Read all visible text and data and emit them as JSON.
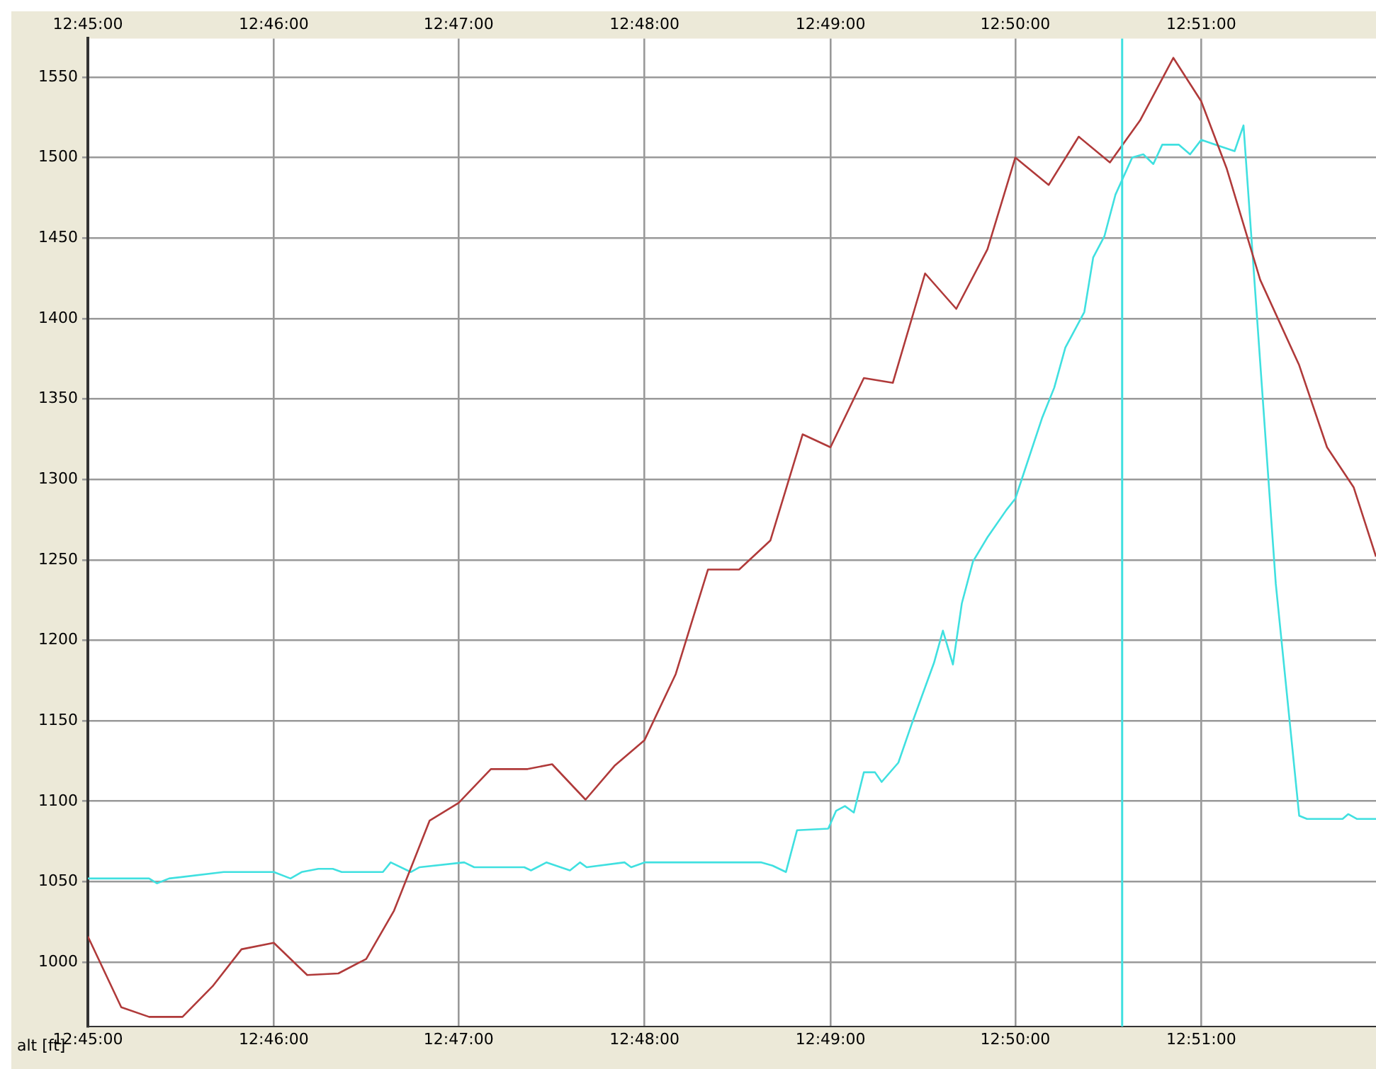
{
  "chart_data": {
    "type": "line",
    "ylabel": "alt [ft]",
    "xlim": [
      12.75,
      12.8657
    ],
    "xticks": [
      {
        "value": 12.75,
        "label": "12:45:00"
      },
      {
        "value": 12.7667,
        "label": "12:46:00"
      },
      {
        "value": 12.7833,
        "label": "12:47:00"
      },
      {
        "value": 12.8,
        "label": "12:48:00"
      },
      {
        "value": 12.8167,
        "label": "12:49:00"
      },
      {
        "value": 12.8333,
        "label": "12:50:00"
      },
      {
        "value": 12.85,
        "label": "12:51:00"
      }
    ],
    "x2lim": [
      12.75,
      12.8657
    ],
    "x2ticks": [
      {
        "value": 12.75,
        "label": "12:45:00"
      },
      {
        "value": 12.7667,
        "label": "12:46:00"
      },
      {
        "value": 12.7833,
        "label": "12:47:00"
      },
      {
        "value": 12.8,
        "label": "12:48:00"
      },
      {
        "value": 12.8167,
        "label": "12:49:00"
      },
      {
        "value": 12.8333,
        "label": "12:50:00"
      },
      {
        "value": 12.85,
        "label": "12:51:00"
      }
    ],
    "ylim": [
      960,
      1574
    ],
    "yticks": [
      1000,
      1050,
      1100,
      1150,
      1200,
      1250,
      1300,
      1350,
      1400,
      1450,
      1500,
      1550
    ],
    "grid": true,
    "legend": false,
    "marker": "none",
    "line_style": "solid",
    "ref_lines": [
      {
        "axis": "x",
        "value": 12.8429,
        "color": "#40e0e0"
      }
    ],
    "series": [
      {
        "color": "#b03a3a",
        "x": [
          12.75,
          12.753,
          12.7555,
          12.7585,
          12.7612,
          12.7638,
          12.7667,
          12.7697,
          12.7725,
          12.775,
          12.7775,
          12.7807,
          12.7833,
          12.7862,
          12.7895,
          12.7917,
          12.7947,
          12.7973,
          12.8,
          12.8028,
          12.8057,
          12.8085,
          12.8113,
          12.8142,
          12.8167,
          12.8197,
          12.8223,
          12.8252,
          12.828,
          12.8308,
          12.8333,
          12.8363,
          12.839,
          12.8418,
          12.8445,
          12.8475,
          12.85,
          12.8523,
          12.8553,
          12.8588,
          12.8613,
          12.8637,
          12.8657
        ],
        "values": [
          1016,
          972,
          966,
          966,
          985,
          1008,
          1012,
          992,
          993,
          1002,
          1032,
          1088,
          1099,
          1120,
          1120,
          1123,
          1101,
          1122,
          1138,
          1179,
          1244,
          1244,
          1262,
          1328,
          1320,
          1363,
          1360,
          1428,
          1406,
          1443,
          1500,
          1483,
          1513,
          1497,
          1523,
          1562,
          1535,
          1493,
          1424,
          1371,
          1320,
          1295,
          1252
        ]
      },
      {
        "color": "#40e0e0",
        "x": [
          12.75,
          12.7555,
          12.7562,
          12.7573,
          12.7622,
          12.7667,
          12.7682,
          12.7692,
          12.7707,
          12.772,
          12.7728,
          12.7765,
          12.7772,
          12.779,
          12.7798,
          12.7838,
          12.7847,
          12.7892,
          12.7898,
          12.7912,
          12.7933,
          12.7942,
          12.7948,
          12.7982,
          12.7988,
          12.8,
          12.8105,
          12.8115,
          12.8127,
          12.8137,
          12.8165,
          12.8172,
          12.818,
          12.8188,
          12.8197,
          12.8207,
          12.8213,
          12.8228,
          12.824,
          12.826,
          12.8268,
          12.8277,
          12.8285,
          12.8295,
          12.8308,
          12.8325,
          12.8333,
          12.8357,
          12.8368,
          12.8378,
          12.8395,
          12.8403,
          12.8413,
          12.8423,
          12.8438,
          12.8448,
          12.8457,
          12.8465,
          12.848,
          12.849,
          12.85,
          12.8513,
          12.853,
          12.8538,
          12.8567,
          12.8588,
          12.8595,
          12.8627,
          12.8632,
          12.864,
          12.8657
        ],
        "values": [
          1052,
          1052,
          1049,
          1052,
          1056,
          1056,
          1052,
          1056,
          1058,
          1058,
          1056,
          1056,
          1062,
          1056,
          1059,
          1062,
          1059,
          1059,
          1057,
          1062,
          1057,
          1062,
          1059,
          1062,
          1059,
          1062,
          1062,
          1060,
          1056,
          1082,
          1083,
          1094,
          1097,
          1093,
          1118,
          1118,
          1112,
          1124,
          1148,
          1186,
          1206,
          1185,
          1223,
          1249,
          1264,
          1281,
          1288,
          1338,
          1357,
          1382,
          1404,
          1438,
          1451,
          1477,
          1500,
          1502,
          1496,
          1508,
          1508,
          1502,
          1511,
          1508,
          1504,
          1520,
          1235,
          1091,
          1089,
          1089,
          1092,
          1089,
          1089
        ]
      }
    ]
  }
}
